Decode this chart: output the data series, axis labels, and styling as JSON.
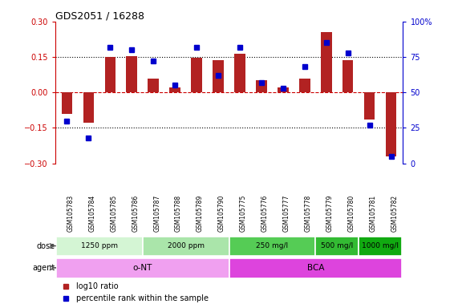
{
  "title": "GDS2051 / 16288",
  "samples": [
    "GSM105783",
    "GSM105784",
    "GSM105785",
    "GSM105786",
    "GSM105787",
    "GSM105788",
    "GSM105789",
    "GSM105790",
    "GSM105775",
    "GSM105776",
    "GSM105777",
    "GSM105778",
    "GSM105779",
    "GSM105780",
    "GSM105781",
    "GSM105782"
  ],
  "log10_ratio": [
    -0.09,
    -0.13,
    0.15,
    0.155,
    0.06,
    0.02,
    0.148,
    0.135,
    0.165,
    0.05,
    0.02,
    0.06,
    0.255,
    0.135,
    -0.115,
    -0.27
  ],
  "percentile": [
    30,
    18,
    82,
    80,
    72,
    55,
    82,
    62,
    82,
    57,
    53,
    68,
    85,
    78,
    27,
    5
  ],
  "ylim": [
    -0.3,
    0.3
  ],
  "yticks_left": [
    -0.3,
    -0.15,
    0.0,
    0.15,
    0.3
  ],
  "yticks_right_vals": [
    0,
    25,
    50,
    75,
    100
  ],
  "yticks_right_labels": [
    "0",
    "25",
    "50",
    "75",
    "100%"
  ],
  "bar_color": "#b22222",
  "dot_color": "#0000cd",
  "zero_line_color": "#cc0000",
  "ref_line_color": "#000000",
  "dose_groups": [
    {
      "label": "1250 ppm",
      "start": 0,
      "end": 4,
      "color": "#d4f5d4"
    },
    {
      "label": "2000 ppm",
      "start": 4,
      "end": 8,
      "color": "#aae5aa"
    },
    {
      "label": "250 mg/l",
      "start": 8,
      "end": 12,
      "color": "#55cc55"
    },
    {
      "label": "500 mg/l",
      "start": 12,
      "end": 14,
      "color": "#33bb33"
    },
    {
      "label": "1000 mg/l",
      "start": 14,
      "end": 16,
      "color": "#11aa11"
    }
  ],
  "agent_groups": [
    {
      "label": "o-NT",
      "start": 0,
      "end": 8,
      "color": "#f0a0f0"
    },
    {
      "label": "BCA",
      "start": 8,
      "end": 16,
      "color": "#dd44dd"
    }
  ],
  "sample_bg_color": "#d8d8d8",
  "legend_items": [
    {
      "label": "log10 ratio",
      "color": "#b22222"
    },
    {
      "label": "percentile rank within the sample",
      "color": "#0000cd"
    }
  ]
}
